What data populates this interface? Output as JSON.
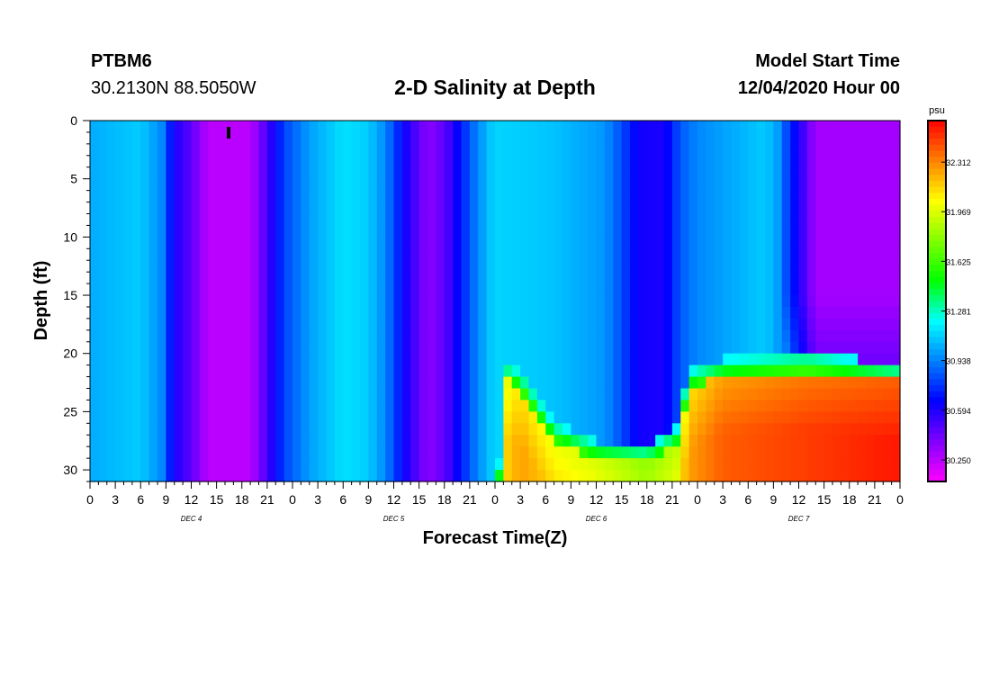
{
  "header": {
    "station": "PTBM6",
    "coords": "30.2130N 88.5050W",
    "title": "2-D Salinity at Depth",
    "model_start_label": "Model Start Time",
    "model_start_value": "12/04/2020 Hour 00"
  },
  "chart_data": {
    "type": "heatmap",
    "title": "2-D Salinity at Depth",
    "xlabel": "Forecast Time(Z)",
    "ylabel": "Depth (ft)",
    "xlim": [
      0,
      96
    ],
    "ylim": [
      31,
      0
    ],
    "x_ticks": [
      0,
      3,
      6,
      9,
      12,
      15,
      18,
      21,
      24,
      27,
      30,
      33,
      36,
      39,
      42,
      45,
      48,
      51,
      54,
      57,
      60,
      63,
      66,
      69,
      72,
      75,
      78,
      81,
      84,
      87,
      90,
      93,
      96
    ],
    "x_tick_labels": [
      "0",
      "3",
      "6",
      "9",
      "12",
      "15",
      "18",
      "21",
      "0",
      "3",
      "6",
      "9",
      "12",
      "15",
      "18",
      "21",
      "0",
      "3",
      "6",
      "9",
      "12",
      "15",
      "18",
      "21",
      "0",
      "3",
      "6",
      "9",
      "12",
      "15",
      "18",
      "21",
      "0"
    ],
    "y_ticks": [
      0,
      5,
      10,
      15,
      20,
      25,
      30
    ],
    "y_tick_labels": [
      "0",
      "5",
      "10",
      "15",
      "20",
      "25",
      "30"
    ],
    "day_labels": [
      {
        "x": 12,
        "text": "DEC 4"
      },
      {
        "x": 36,
        "text": "DEC 5"
      },
      {
        "x": 60,
        "text": "DEC 6"
      },
      {
        "x": 84,
        "text": "DEC 7"
      }
    ],
    "colorbar": {
      "unit": "psu",
      "min": 30.1,
      "max": 32.6,
      "tick_values": [
        30.25,
        30.594,
        30.938,
        31.281,
        31.625,
        31.969,
        32.312
      ],
      "tick_labels": [
        "30.250",
        "30.594",
        "30.938",
        "31.281",
        "31.625",
        "31.969",
        "32.312"
      ]
    },
    "surface_profile": [
      {
        "t": 0,
        "v": 31.03
      },
      {
        "t": 6,
        "v": 31.1
      },
      {
        "t": 8.5,
        "v": 30.95
      },
      {
        "t": 10,
        "v": 30.6
      },
      {
        "t": 12,
        "v": 30.45
      },
      {
        "t": 14,
        "v": 30.25
      },
      {
        "t": 19,
        "v": 30.25
      },
      {
        "t": 21,
        "v": 30.5
      },
      {
        "t": 23,
        "v": 30.8
      },
      {
        "t": 26,
        "v": 31.0
      },
      {
        "t": 30,
        "v": 31.15
      },
      {
        "t": 33,
        "v": 31.1
      },
      {
        "t": 35,
        "v": 30.95
      },
      {
        "t": 37.5,
        "v": 30.6
      },
      {
        "t": 40,
        "v": 30.35
      },
      {
        "t": 42,
        "v": 30.45
      },
      {
        "t": 44,
        "v": 30.7
      },
      {
        "t": 46,
        "v": 31.0
      },
      {
        "t": 48,
        "v": 31.12
      },
      {
        "t": 55,
        "v": 31.08
      },
      {
        "t": 61,
        "v": 30.98
      },
      {
        "t": 63,
        "v": 30.82
      },
      {
        "t": 65,
        "v": 30.62
      },
      {
        "t": 68,
        "v": 30.6
      },
      {
        "t": 70,
        "v": 30.85
      },
      {
        "t": 72,
        "v": 30.95
      },
      {
        "t": 80,
        "v": 31.1
      },
      {
        "t": 83,
        "v": 30.9
      },
      {
        "t": 86,
        "v": 30.45
      },
      {
        "t": 89,
        "v": 30.3
      },
      {
        "t": 96,
        "v": 30.28
      }
    ],
    "bottom_layer": [
      {
        "t": 48.5,
        "top_depth": 31,
        "v": 31.3
      },
      {
        "t": 49.5,
        "top_depth": 22.5,
        "v": 32.0
      },
      {
        "t": 51,
        "top_depth": 23,
        "v": 32.1
      },
      {
        "t": 55,
        "top_depth": 27.5,
        "v": 32.0
      },
      {
        "t": 60,
        "top_depth": 29,
        "v": 31.95
      },
      {
        "t": 66,
        "top_depth": 29.5,
        "v": 31.8
      },
      {
        "t": 69.5,
        "top_depth": 28,
        "v": 31.9
      },
      {
        "t": 71,
        "top_depth": 23,
        "v": 32.1
      },
      {
        "t": 75,
        "top_depth": 22,
        "v": 32.25
      },
      {
        "t": 85,
        "top_depth": 21.5,
        "v": 32.32
      },
      {
        "t": 96,
        "top_depth": 22.5,
        "v": 32.4
      }
    ],
    "colors": {
      "magenta": "#ff00ff",
      "violet": "#8000ff",
      "blue": "#0000ff",
      "light_blue": "#0080ff",
      "cyan": "#00ffff",
      "green": "#00ff00",
      "yellow_green": "#80ff00",
      "yellow": "#ffff00",
      "orange": "#ff8000",
      "red": "#ff0000"
    }
  }
}
